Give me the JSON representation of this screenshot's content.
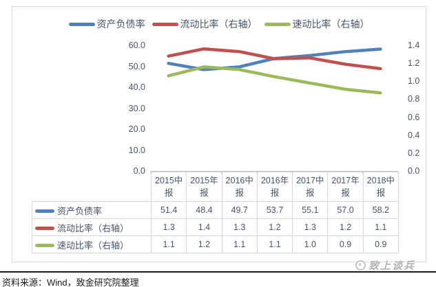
{
  "chart_data": {
    "type": "line",
    "title": "",
    "legend_position": "top",
    "grid": false,
    "categories": [
      "2015中报",
      "2015年报",
      "2016中报",
      "2016年报",
      "2017中报",
      "2017年报",
      "2018中报"
    ],
    "series": [
      {
        "name": "资产负债率",
        "axis": "left",
        "color": "#4F81BD",
        "values": [
          51.4,
          48.4,
          49.7,
          53.7,
          55.1,
          57.0,
          58.2
        ],
        "display_values": [
          "51.4",
          "48.4",
          "49.7",
          "53.7",
          "55.1",
          "57.0",
          "58.2"
        ],
        "plot_values": [
          51.4,
          48.4,
          49.7,
          53.7,
          55.1,
          57.0,
          58.2
        ]
      },
      {
        "name": "流动比率（右轴）",
        "axis": "right",
        "color": "#C0504D",
        "values": [
          1.3,
          1.4,
          1.3,
          1.2,
          1.3,
          1.2,
          1.1
        ],
        "display_values": [
          "1.3",
          "1.4",
          "1.3",
          "1.2",
          "1.3",
          "1.2",
          "1.1"
        ],
        "plot_values": [
          1.28,
          1.36,
          1.33,
          1.25,
          1.26,
          1.19,
          1.14
        ]
      },
      {
        "name": "速动比率（右轴）",
        "axis": "right",
        "color": "#9BBB59",
        "values": [
          1.1,
          1.2,
          1.1,
          1.1,
          1.0,
          0.9,
          0.9
        ],
        "display_values": [
          "1.1",
          "1.2",
          "1.1",
          "1.1",
          "1.0",
          "0.9",
          "0.9"
        ],
        "plot_values": [
          1.06,
          1.16,
          1.13,
          1.05,
          0.98,
          0.91,
          0.87
        ]
      }
    ],
    "left_axis": {
      "min": 0,
      "max": 60,
      "ticks": [
        "60.0",
        "50.0",
        "40.0",
        "30.0",
        "20.0",
        "10.0",
        "0.0"
      ]
    },
    "right_axis": {
      "min": 0,
      "max": 1.4,
      "ticks": [
        "1.4",
        "1.2",
        "1.0",
        "0.8",
        "0.6",
        "0.4",
        "0.2",
        "0.0"
      ]
    }
  },
  "watermark": {
    "text": "致上谈兵"
  },
  "source": {
    "text": "资料来源：Wind，致金研究院整理"
  },
  "colors": {
    "series_blue": "#4F81BD",
    "series_red": "#C0504D",
    "series_green": "#9BBB59",
    "axis_text": "#44546A",
    "axis_line": "#BFBFBF",
    "table_border": "#D6D6D6",
    "chart_border": "#D9D9D9",
    "watermark_gray": "#B3B3B3"
  }
}
